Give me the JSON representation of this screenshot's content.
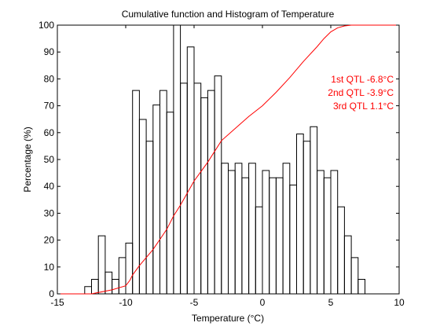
{
  "chart_data": {
    "type": "line",
    "title": "Cumulative function and Histogram of Temperature",
    "xlabel": "Temperature (°C)",
    "ylabel": "Percentage (%)",
    "xlim": [
      -15,
      10
    ],
    "ylim": [
      0,
      100
    ],
    "xticks": [
      "-15",
      "-10",
      "-5",
      "0",
      "5",
      "10"
    ],
    "yticks": [
      "0",
      "10",
      "20",
      "30",
      "40",
      "50",
      "60",
      "70",
      "80",
      "90",
      "100"
    ],
    "grid": false,
    "series": [
      {
        "kind": "histogram-stairs",
        "color": "#000000",
        "bin_edges": [
          -13.0,
          -12.5,
          -12.0,
          -11.5,
          -11.0,
          -10.5,
          -10.0,
          -9.5,
          -9.0,
          -8.5,
          -8.0,
          -7.5,
          -7.0,
          -6.5,
          -6.0,
          -5.5,
          -5.0,
          -4.5,
          -4.0,
          -3.5,
          -3.0,
          -2.5,
          -2.0,
          -1.5,
          -1.0,
          -0.5,
          0.0,
          0.5,
          1.0,
          1.5,
          2.0,
          2.5,
          3.0,
          3.5,
          4.0,
          4.5,
          5.0,
          5.5,
          6.0,
          6.5,
          7.0,
          7.5
        ],
        "values": [
          2.7,
          5.4,
          21.6,
          8.1,
          5.4,
          13.5,
          18.9,
          75.7,
          64.9,
          56.8,
          70.3,
          75.7,
          67.6,
          100.0,
          78.4,
          91.9,
          78.4,
          73.0,
          75.7,
          81.1,
          48.6,
          45.9,
          48.6,
          43.2,
          48.6,
          32.4,
          45.9,
          43.2,
          43.2,
          48.6,
          40.5,
          59.5,
          56.8,
          62.2,
          45.9,
          43.2,
          45.9,
          32.4,
          21.6,
          13.5,
          5.4
        ]
      },
      {
        "kind": "cumulative",
        "color": "#ff0000",
        "x": [
          -15.0,
          -12.5,
          -12.0,
          -11.0,
          -10.0,
          -9.7,
          -9.5,
          -9.0,
          -8.5,
          -8.0,
          -7.0,
          -6.5,
          -6.0,
          -5.0,
          -4.0,
          -3.0,
          -2.0,
          -1.0,
          0.0,
          1.0,
          2.0,
          3.0,
          4.0,
          4.5,
          5.0,
          5.5,
          6.0,
          6.5,
          10.0
        ],
        "y": [
          0.0,
          0.0,
          0.5,
          1.5,
          3.0,
          5.0,
          7.0,
          10.5,
          13.5,
          16.5,
          24.0,
          29.0,
          33.0,
          42.0,
          49.0,
          57.0,
          61.5,
          66.0,
          70.0,
          75.0,
          80.5,
          86.5,
          92.0,
          95.0,
          97.5,
          99.0,
          99.7,
          100.0,
          100.0
        ]
      }
    ],
    "annotations": [
      {
        "text": "1st QTL -6.8°C",
        "color": "#ff0000",
        "position": "right"
      },
      {
        "text": "2nd QTL -3.9°C",
        "color": "#ff0000",
        "position": "right"
      },
      {
        "text": "3rd QTL  1.1°C",
        "color": "#ff0000",
        "position": "right"
      }
    ]
  }
}
